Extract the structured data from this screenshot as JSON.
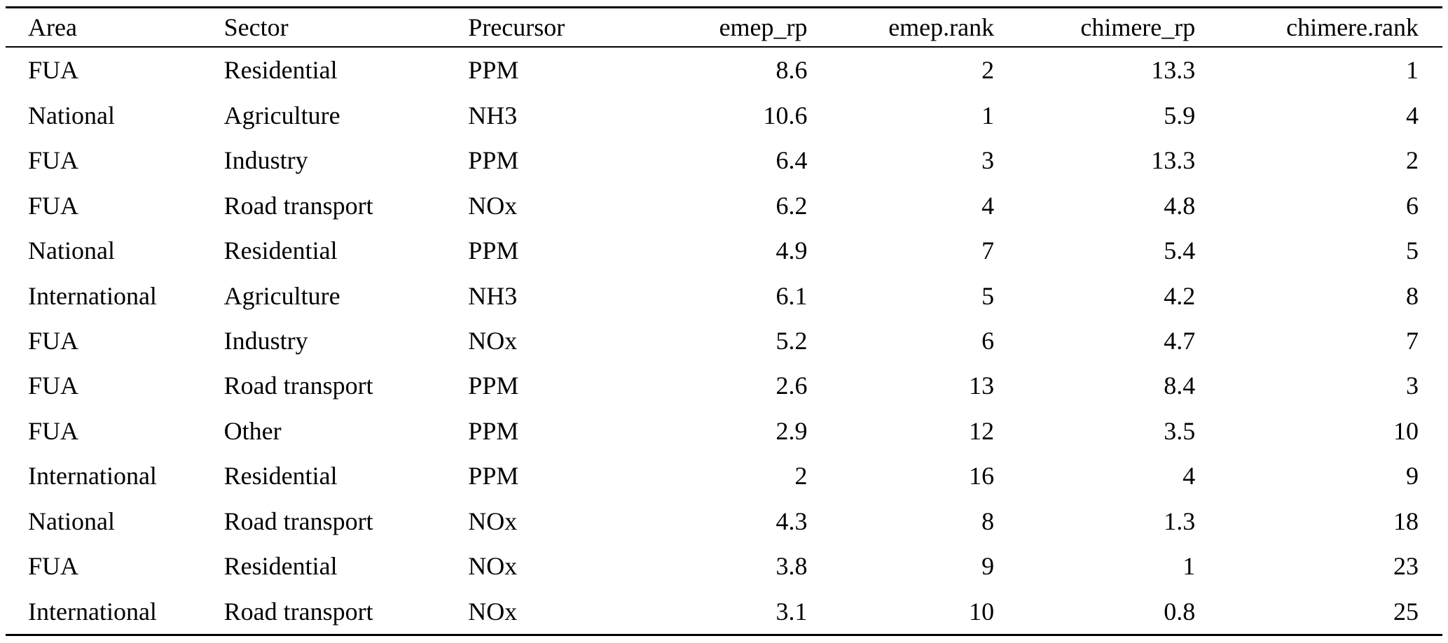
{
  "page": {
    "background_color": "#ffffff",
    "text_color": "#000000",
    "rule_color": "#000000"
  },
  "table": {
    "columns": [
      {
        "label": "Area",
        "align": "left"
      },
      {
        "label": "Sector",
        "align": "left"
      },
      {
        "label": "Precursor",
        "align": "left"
      },
      {
        "label": "emep_rp",
        "align": "right"
      },
      {
        "label": "emep.rank",
        "align": "right"
      },
      {
        "label": "chimere_rp",
        "align": "right"
      },
      {
        "label": "chimere.rank",
        "align": "right"
      }
    ],
    "rows": [
      [
        "FUA",
        "Residential",
        "PPM",
        "8.6",
        "2",
        "13.3",
        "1"
      ],
      [
        "National",
        "Agriculture",
        "NH3",
        "10.6",
        "1",
        "5.9",
        "4"
      ],
      [
        "FUA",
        "Industry",
        "PPM",
        "6.4",
        "3",
        "13.3",
        "2"
      ],
      [
        "FUA",
        "Road transport",
        "NOx",
        "6.2",
        "4",
        "4.8",
        "6"
      ],
      [
        "National",
        "Residential",
        "PPM",
        "4.9",
        "7",
        "5.4",
        "5"
      ],
      [
        "International",
        "Agriculture",
        "NH3",
        "6.1",
        "5",
        "4.2",
        "8"
      ],
      [
        "FUA",
        "Industry",
        "NOx",
        "5.2",
        "6",
        "4.7",
        "7"
      ],
      [
        "FUA",
        "Road transport",
        "PPM",
        "2.6",
        "13",
        "8.4",
        "3"
      ],
      [
        "FUA",
        "Other",
        "PPM",
        "2.9",
        "12",
        "3.5",
        "10"
      ],
      [
        "International",
        "Residential",
        "PPM",
        "2",
        "16",
        "4",
        "9"
      ],
      [
        "National",
        "Road transport",
        "NOx",
        "4.3",
        "8",
        "1.3",
        "18"
      ],
      [
        "FUA",
        "Residential",
        "NOx",
        "3.8",
        "9",
        "1",
        "23"
      ],
      [
        "International",
        "Road transport",
        "NOx",
        "3.1",
        "10",
        "0.8",
        "25"
      ]
    ]
  }
}
